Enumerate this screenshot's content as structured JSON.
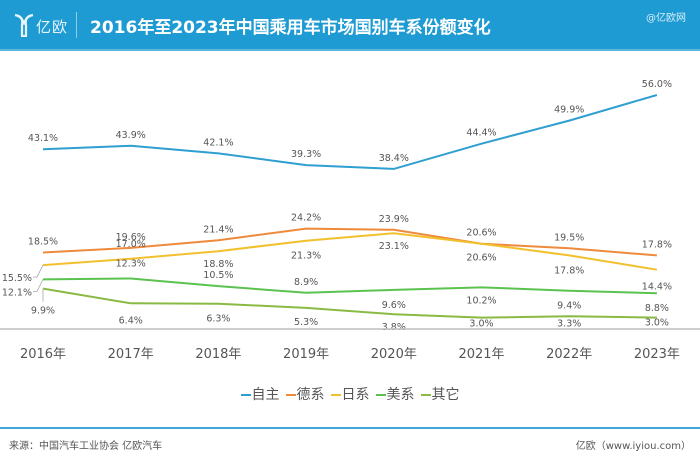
{
  "header": {
    "logo_text": "亿欧",
    "title": "2016年至2023年中国乘用车市场国别车系份额变化",
    "watermark": "@亿欧网"
  },
  "footer": {
    "source": "来源：中国汽车工业协会 亿欧汽车",
    "site": "亿欧（www.iyiou.com）"
  },
  "chart_data": {
    "type": "line",
    "title": "2016年至2023年中国乘用车市场国别车系份额变化",
    "xlabel": "",
    "ylabel": "",
    "x": [
      "2016年",
      "2017年",
      "2018年",
      "2019年",
      "2020年",
      "2021年",
      "2022年",
      "2023年"
    ],
    "ylim": [
      0,
      56
    ],
    "grid": false,
    "legend_position": "bottom",
    "series": [
      {
        "name": "自主",
        "color": "#2e9fd0",
        "values": [
          43.1,
          43.9,
          42.1,
          39.3,
          38.4,
          44.4,
          49.9,
          56.0
        ],
        "labels": [
          "43.1%",
          "43.9%",
          "42.1%",
          "39.3%",
          "38.4%",
          "44.4%",
          "49.9%",
          "56.0%"
        ]
      },
      {
        "name": "德系",
        "color": "#ee8a3c",
        "values": [
          18.5,
          19.6,
          21.4,
          24.2,
          23.9,
          20.6,
          19.5,
          17.8
        ],
        "labels": [
          "18.5%",
          "19.6%",
          "21.4%",
          "24.2%",
          "23.9%",
          "20.6%",
          "19.5%",
          "17.8%"
        ]
      },
      {
        "name": "日系",
        "color": "#f2c02d",
        "values": [
          15.5,
          17.0,
          18.8,
          21.3,
          23.1,
          20.6,
          17.8,
          14.4
        ],
        "labels": [
          "15.5%",
          "17.0%",
          "18.8%",
          "21.3%",
          "23.1%",
          "20.6%",
          "17.8%",
          "14.4%"
        ]
      },
      {
        "name": "美系",
        "color": "#5bc24f",
        "values": [
          12.1,
          12.3,
          10.5,
          8.9,
          9.6,
          10.2,
          9.4,
          8.8
        ],
        "labels": [
          "12.1%",
          "12.3%",
          "10.5%",
          "8.9%",
          "9.6%",
          "10.2%",
          "9.4%",
          "8.8%"
        ]
      },
      {
        "name": "其它",
        "color": "#8ab944",
        "values": [
          9.9,
          6.4,
          6.3,
          5.3,
          3.8,
          3.0,
          3.3,
          3.0
        ],
        "labels": [
          "9.9%",
          "6.4%",
          "6.3%",
          "5.3%",
          "3.8%",
          "3.0%",
          "3.3%",
          "3.0%"
        ]
      }
    ]
  }
}
